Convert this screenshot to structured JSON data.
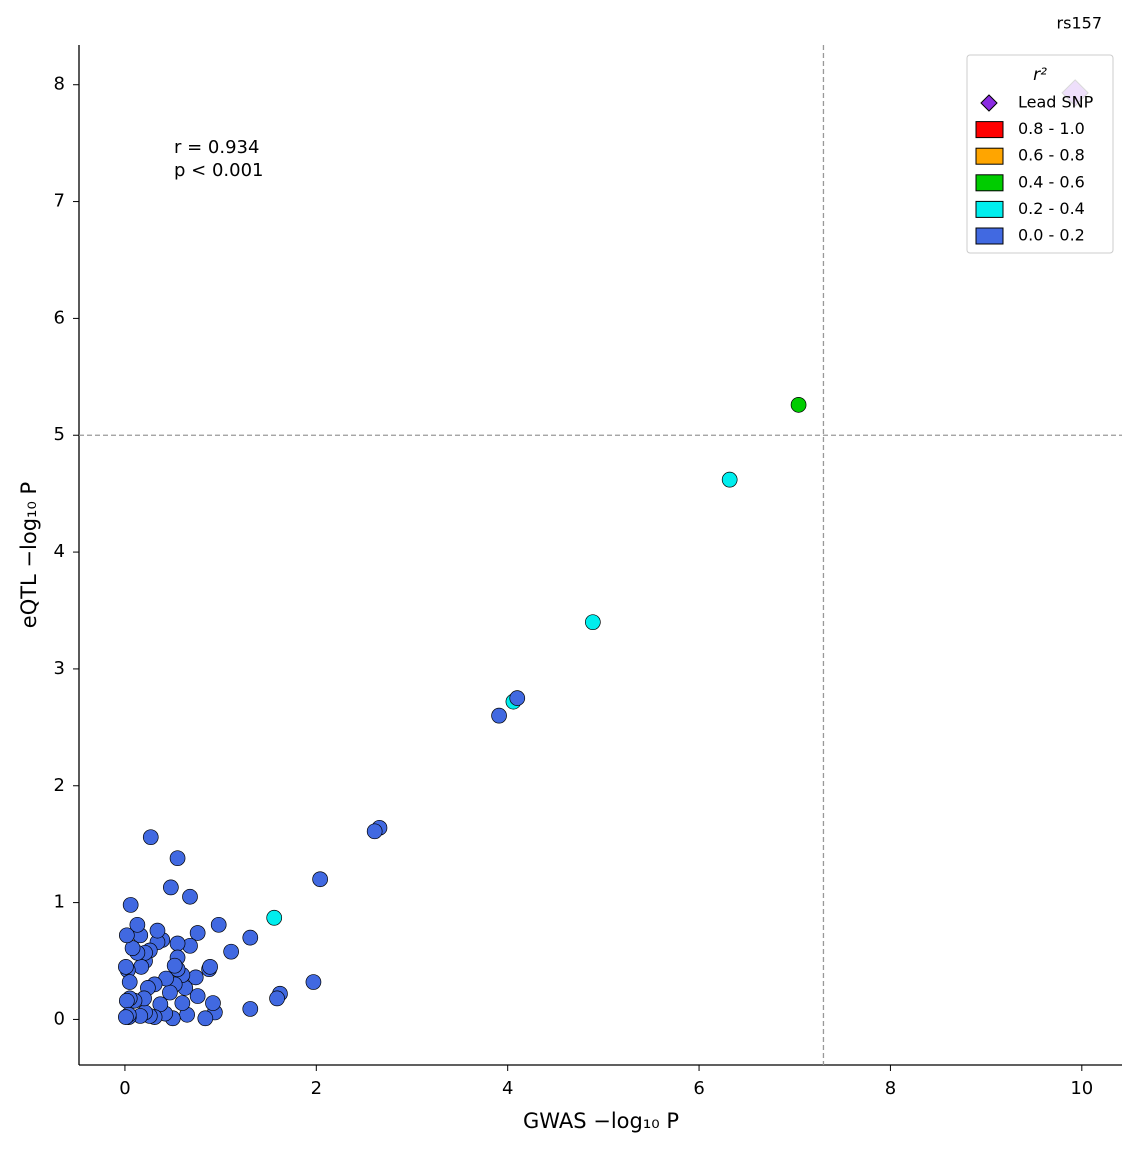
{
  "chart_data": {
    "type": "scatter",
    "lead_label": "rs157",
    "annotations": [
      "r = 0.934",
      "p < 0.001"
    ],
    "x_label": "GWAS −log₁₀ P",
    "y_label": "eQTL −log₁₀ P",
    "legend_title": "r²",
    "legend": "upper right",
    "xlim": [
      -0.48,
      10.42
    ],
    "xticks": [
      0,
      2,
      4,
      6,
      8,
      10
    ],
    "ylim": [
      -0.39,
      8.34
    ],
    "yticks": [
      0,
      1,
      2,
      3,
      4,
      5,
      6,
      7,
      8
    ],
    "hlines": [
      5
    ],
    "vlines": [
      7.3
    ],
    "grid": false,
    "series": [
      {
        "name": "Lead SNP",
        "color": "#8a2be2",
        "marker": "diamond",
        "x": [
          9.93
        ],
        "y": [
          7.93
        ]
      },
      {
        "name": "0.8 - 1.0",
        "color": "#ff0000",
        "marker": "circle",
        "x": [],
        "y": []
      },
      {
        "name": "0.6 - 0.8",
        "color": "#ffa500",
        "marker": "circle",
        "x": [],
        "y": []
      },
      {
        "name": "0.4 - 0.6",
        "color": "#00cc00",
        "marker": "circle",
        "x": [
          7.04
        ],
        "y": [
          5.26
        ]
      },
      {
        "name": "0.2 - 0.4",
        "color": "#00eeee",
        "marker": "circle",
        "x": [
          6.32,
          4.89,
          4.06,
          1.56
        ],
        "y": [
          4.62,
          3.4,
          2.72,
          0.87
        ]
      },
      {
        "name": "0.0 - 0.2",
        "color": "#4169e1",
        "marker": "circle",
        "x": [
          4.1,
          3.91,
          2.66,
          2.61,
          2.04,
          1.97,
          1.62,
          1.59,
          1.31,
          1.31,
          1.11,
          0.98,
          0.94,
          0.92,
          0.88,
          0.89,
          0.84,
          0.76,
          0.76,
          0.74,
          0.68,
          0.68,
          0.65,
          0.63,
          0.6,
          0.6,
          0.55,
          0.55,
          0.55,
          0.55,
          0.52,
          0.5,
          0.48,
          0.52,
          0.47,
          0.43,
          0.42,
          0.39,
          0.37,
          0.34,
          0.34,
          0.31,
          0.31,
          0.27,
          0.26,
          0.26,
          0.24,
          0.21,
          0.21,
          0.21,
          0.2,
          0.17,
          0.16,
          0.16,
          0.13,
          0.1,
          0.13,
          0.08,
          0.06,
          0.05,
          0.04,
          0.03,
          0.02,
          0.01,
          0.02,
          0.04,
          0.05,
          0.01
        ],
        "y": [
          2.75,
          2.6,
          1.64,
          1.61,
          1.2,
          0.32,
          0.22,
          0.18,
          0.09,
          0.7,
          0.58,
          0.81,
          0.06,
          0.14,
          0.43,
          0.45,
          0.01,
          0.74,
          0.2,
          0.36,
          1.05,
          0.63,
          0.04,
          0.27,
          0.14,
          0.38,
          1.38,
          0.65,
          0.53,
          0.43,
          0.3,
          0.01,
          1.13,
          0.46,
          0.23,
          0.35,
          0.05,
          0.68,
          0.13,
          0.66,
          0.76,
          0.3,
          0.02,
          1.56,
          0.59,
          0.03,
          0.27,
          0.06,
          0.5,
          0.57,
          0.18,
          0.45,
          0.72,
          0.03,
          0.57,
          0.16,
          0.81,
          0.61,
          0.98,
          0.18,
          0.02,
          0.42,
          0.72,
          0.45,
          0.16,
          0.04,
          0.32,
          0.02
        ]
      }
    ]
  }
}
